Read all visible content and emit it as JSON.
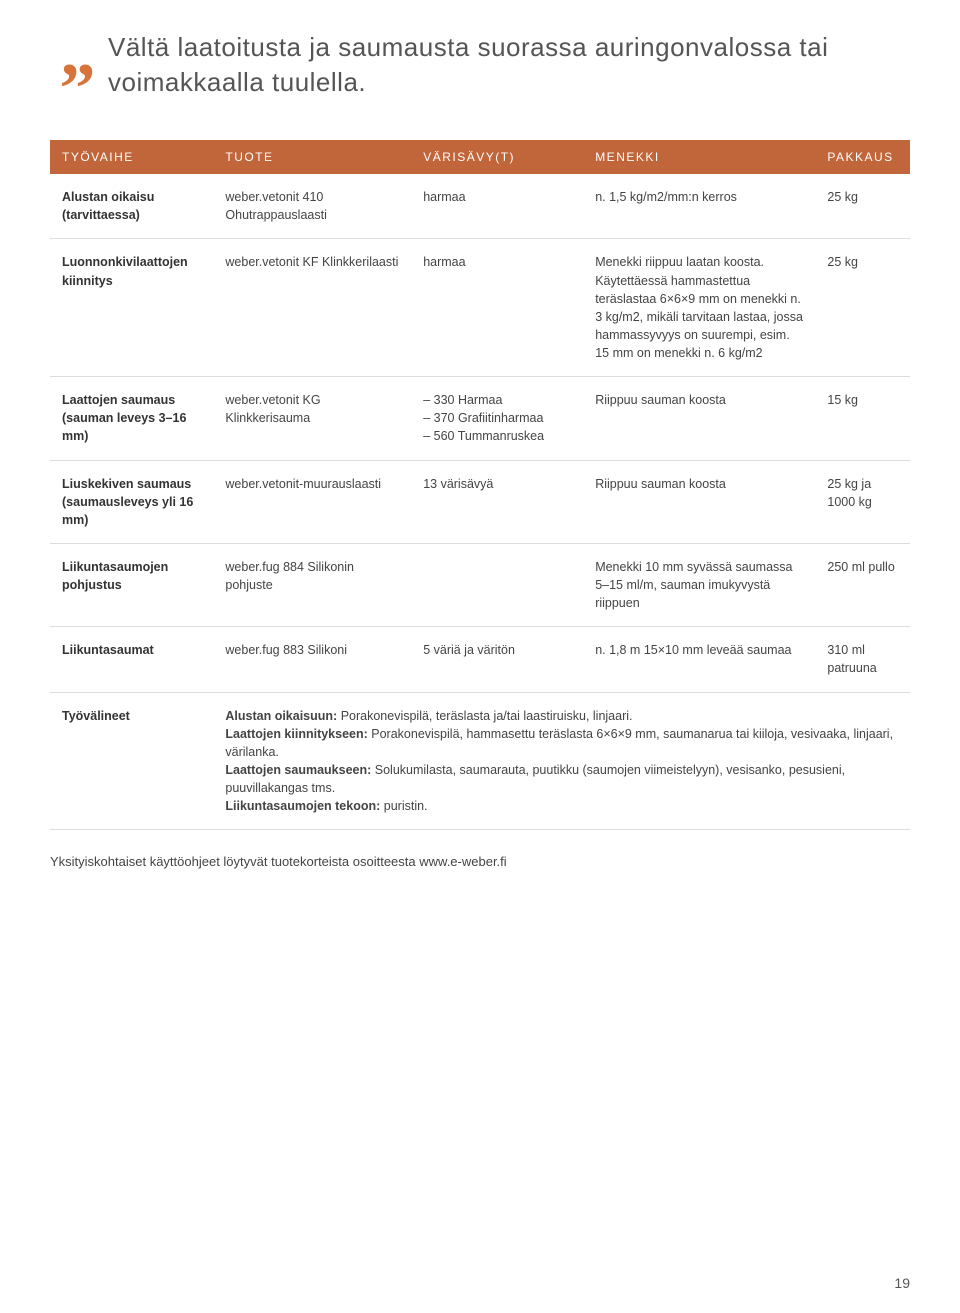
{
  "quote": {
    "text": "Vältä laatoitusta ja saumausta suorassa auringonvalossa tai voimakkaalla tuulella."
  },
  "colors": {
    "accent": "#c1653a",
    "quote_mark": "#d8743b",
    "text": "#444444",
    "border": "#dddddd",
    "header_text": "#ffffff",
    "background": "#ffffff"
  },
  "table": {
    "headers": [
      "TYÖVAIHE",
      "TUOTE",
      "VÄRISÄVY(T)",
      "MENEKKI",
      "PAKKAUS"
    ],
    "rows": [
      {
        "label": "Alustan oikaisu (tarvittaessa)",
        "product": "weber.vetonit 410 Ohutrappauslaasti",
        "shade": "harmaa",
        "consumption": "n. 1,5 kg/m2/mm:n kerros",
        "package": "25 kg"
      },
      {
        "label": "Luonnonkivilaattojen kiinnitys",
        "product": "weber.vetonit KF Klinkkerilaasti",
        "shade": "harmaa",
        "consumption": "Menekki riippuu laatan koosta. Käytettäessä hammastettua teräslastaa 6×6×9 mm on menekki n. 3 kg/m2, mikäli tarvitaan lastaa, jossa hammassyvyys on suurempi, esim. 15 mm on menekki n. 6 kg/m2",
        "package": "25 kg"
      },
      {
        "label": "Laattojen saumaus (sauman leveys 3–16 mm)",
        "product": "weber.vetonit KG Klinkkerisauma",
        "shade": "– 330 Harmaa\n– 370 Grafiitinharmaa\n– 560 Tummanruskea",
        "consumption": "Riippuu sauman koosta",
        "package": "15 kg"
      },
      {
        "label": "Liuskekiven saumaus (saumausleveys yli 16 mm)",
        "product": "weber.vetonit-muurauslaasti",
        "shade": "13 värisävyä",
        "consumption": "Riippuu sauman koosta",
        "package": "25 kg ja 1000 kg"
      },
      {
        "label": "Liikuntasaumojen pohjustus",
        "product": "weber.fug 884 Silikonin pohjuste",
        "shade": "",
        "consumption": "Menekki 10 mm syvässä saumassa 5–15 ml/m, sauman imukyvystä riippuen",
        "package": "250 ml pullo"
      },
      {
        "label": "Liikuntasaumat",
        "product": "weber.fug 883 Silikoni",
        "shade": "5 väriä ja väritön",
        "consumption": "n. 1,8 m 15×10 mm leveää saumaa",
        "package": "310 ml patruuna"
      }
    ],
    "tools": {
      "label": "Työvälineet",
      "lines": [
        {
          "bold": "Alustan oikaisuun:",
          "rest": " Porakonevispilä, teräslasta ja/tai laastiruisku, linjaari."
        },
        {
          "bold": "Laattojen kiinnitykseen:",
          "rest": " Porakonevispilä, hammasettu teräslasta 6×6×9 mm, saumanarua tai kiiloja, vesivaaka, linjaari, värilanka."
        },
        {
          "bold": "Laattojen saumaukseen:",
          "rest": " Solukumilasta, saumarauta, puutikku (saumojen viimeistelyyn), vesisanko, pesusieni, puuvillakangas tms."
        },
        {
          "bold": "Liikuntasaumojen tekoon:",
          "rest": " puristin."
        }
      ]
    }
  },
  "footnote": "Yksityiskohtaiset käyttöohjeet löytyvät tuotekorteista osoitteesta www.e-weber.fi",
  "page_number": "19"
}
